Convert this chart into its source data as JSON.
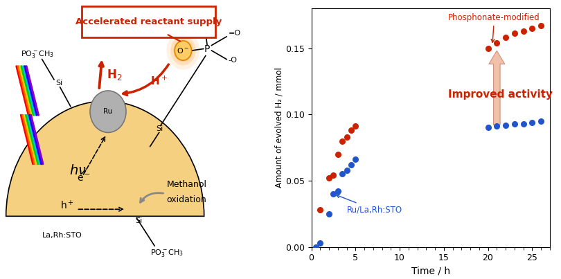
{
  "red_x": [
    1,
    2,
    2.5,
    3,
    3.5,
    4,
    4.5,
    5,
    20,
    21,
    22,
    23,
    24,
    25,
    26
  ],
  "red_y": [
    0.028,
    0.052,
    0.054,
    0.07,
    0.08,
    0.083,
    0.088,
    0.091,
    0.15,
    0.154,
    0.158,
    0.161,
    0.163,
    0.165,
    0.167
  ],
  "blue_x": [
    0.5,
    1,
    2,
    2.5,
    3,
    3.5,
    4,
    4.5,
    5,
    20,
    21,
    22,
    23,
    24,
    25,
    26
  ],
  "blue_y": [
    0.0,
    0.003,
    0.025,
    0.04,
    0.042,
    0.055,
    0.058,
    0.062,
    0.066,
    0.09,
    0.091,
    0.092,
    0.093,
    0.093,
    0.094,
    0.095
  ],
  "red_color": "#cc2200",
  "blue_color": "#2255cc",
  "xlabel": "Time / h",
  "ylabel": "Amount of evolved H₂ / mmol",
  "xlim": [
    0,
    27
  ],
  "ylim": [
    0,
    0.18
  ],
  "yticks": [
    0,
    0.05,
    0.1,
    0.15
  ],
  "xticks": [
    0,
    5,
    10,
    15,
    20,
    25
  ],
  "label_phosphonate": "Phosphonate-modified",
  "label_ru": "Ru/La,Rh:STO",
  "annotation_improved": "Improved activity",
  "arrow_color": "#f0c0a8",
  "arrow_edge_color": "#d09080",
  "arrow_text_color": "#cc2200",
  "box_color": "#cc2200",
  "box_text": "Accelerated reactant supply",
  "diagram_bg": "#f5d080",
  "fig_bg": "#ffffff",
  "bolt_colors": [
    "#ff0000",
    "#ff6600",
    "#ffcc00",
    "#00cc00",
    "#00cccc",
    "#0000ff",
    "#8800cc"
  ]
}
